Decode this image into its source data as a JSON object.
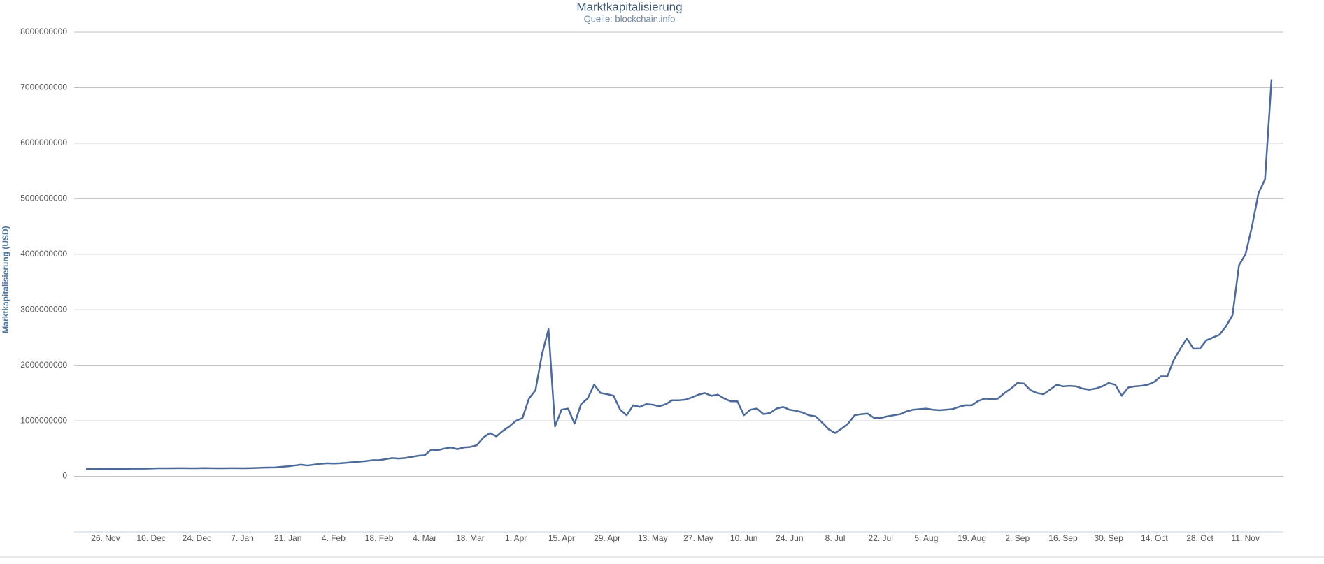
{
  "chart_data": {
    "type": "line",
    "title": "Marktkapitalisierung",
    "subtitle": "Quelle: blockchain.info",
    "y_label": "Marktkapitalisierung (USD)",
    "color": "#4c6a99",
    "grid": true,
    "ylim": [
      -1000000000,
      8000000000
    ],
    "yticks": [
      0,
      1000000000,
      2000000000,
      3000000000,
      4000000000,
      5000000000,
      6000000000,
      7000000000,
      8000000000
    ],
    "categories": [
      null,
      null,
      null,
      "26. Nov",
      null,
      null,
      null,
      null,
      null,
      null,
      "10. Dec",
      null,
      null,
      null,
      null,
      null,
      null,
      "24. Dec",
      null,
      null,
      null,
      null,
      null,
      null,
      "7. Jan",
      null,
      null,
      null,
      null,
      null,
      null,
      "21. Jan",
      null,
      null,
      null,
      null,
      null,
      null,
      "4. Feb",
      null,
      null,
      null,
      null,
      null,
      null,
      "18. Feb",
      null,
      null,
      null,
      null,
      null,
      null,
      "4. Mar",
      null,
      null,
      null,
      null,
      null,
      null,
      "18. Mar",
      null,
      null,
      null,
      null,
      null,
      null,
      "1. Apr",
      null,
      null,
      null,
      null,
      null,
      null,
      "15. Apr",
      null,
      null,
      null,
      null,
      null,
      null,
      "29. Apr",
      null,
      null,
      null,
      null,
      null,
      null,
      "13. May",
      null,
      null,
      null,
      null,
      null,
      null,
      "27. May",
      null,
      null,
      null,
      null,
      null,
      null,
      "10. Jun",
      null,
      null,
      null,
      null,
      null,
      null,
      "24. Jun",
      null,
      null,
      null,
      null,
      null,
      null,
      "8. Jul",
      null,
      null,
      null,
      null,
      null,
      null,
      "22. Jul",
      null,
      null,
      null,
      null,
      null,
      null,
      "5. Aug",
      null,
      null,
      null,
      null,
      null,
      null,
      "19. Aug",
      null,
      null,
      null,
      null,
      null,
      null,
      "2. Sep",
      null,
      null,
      null,
      null,
      null,
      null,
      "16. Sep",
      null,
      null,
      null,
      null,
      null,
      null,
      "30. Sep",
      null,
      null,
      null,
      null,
      null,
      null,
      "14. Oct",
      null,
      null,
      null,
      null,
      null,
      null,
      "28. Oct",
      null,
      null,
      null,
      null,
      null,
      null,
      "11. Nov",
      null,
      null,
      null,
      null
    ],
    "values": [
      130000000,
      130000000,
      132000000,
      133000000,
      135000000,
      135000000,
      135000000,
      137000000,
      137000000,
      138000000,
      140000000,
      145000000,
      145000000,
      145000000,
      147000000,
      147000000,
      145000000,
      145000000,
      148000000,
      147000000,
      145000000,
      145000000,
      147000000,
      147000000,
      145000000,
      147000000,
      150000000,
      155000000,
      158000000,
      160000000,
      170000000,
      180000000,
      195000000,
      210000000,
      195000000,
      210000000,
      225000000,
      235000000,
      230000000,
      235000000,
      245000000,
      255000000,
      265000000,
      275000000,
      290000000,
      290000000,
      310000000,
      330000000,
      320000000,
      330000000,
      350000000,
      370000000,
      380000000,
      480000000,
      470000000,
      500000000,
      520000000,
      490000000,
      520000000,
      530000000,
      560000000,
      700000000,
      780000000,
      720000000,
      820000000,
      900000000,
      1000000000,
      1050000000,
      1400000000,
      1550000000,
      2200000000,
      2650000000,
      900000000,
      1200000000,
      1220000000,
      950000000,
      1300000000,
      1400000000,
      1650000000,
      1500000000,
      1480000000,
      1450000000,
      1200000000,
      1100000000,
      1280000000,
      1250000000,
      1300000000,
      1290000000,
      1260000000,
      1300000000,
      1370000000,
      1370000000,
      1380000000,
      1420000000,
      1470000000,
      1500000000,
      1450000000,
      1470000000,
      1400000000,
      1350000000,
      1350000000,
      1100000000,
      1200000000,
      1220000000,
      1120000000,
      1140000000,
      1220000000,
      1250000000,
      1200000000,
      1180000000,
      1150000000,
      1100000000,
      1080000000,
      970000000,
      850000000,
      780000000,
      860000000,
      950000000,
      1100000000,
      1120000000,
      1130000000,
      1050000000,
      1050000000,
      1080000000,
      1100000000,
      1120000000,
      1170000000,
      1200000000,
      1210000000,
      1220000000,
      1200000000,
      1190000000,
      1200000000,
      1210000000,
      1250000000,
      1280000000,
      1280000000,
      1360000000,
      1400000000,
      1390000000,
      1400000000,
      1500000000,
      1580000000,
      1680000000,
      1670000000,
      1550000000,
      1500000000,
      1480000000,
      1560000000,
      1650000000,
      1620000000,
      1630000000,
      1620000000,
      1580000000,
      1560000000,
      1580000000,
      1620000000,
      1680000000,
      1650000000,
      1450000000,
      1600000000,
      1620000000,
      1630000000,
      1650000000,
      1700000000,
      1800000000,
      1800000000,
      2100000000,
      2300000000,
      2480000000,
      2300000000,
      2300000000,
      2450000000,
      2500000000,
      2550000000,
      2700000000,
      2900000000,
      3800000000,
      4000000000,
      4500000000,
      5100000000,
      5350000000,
      7150000000
    ]
  }
}
